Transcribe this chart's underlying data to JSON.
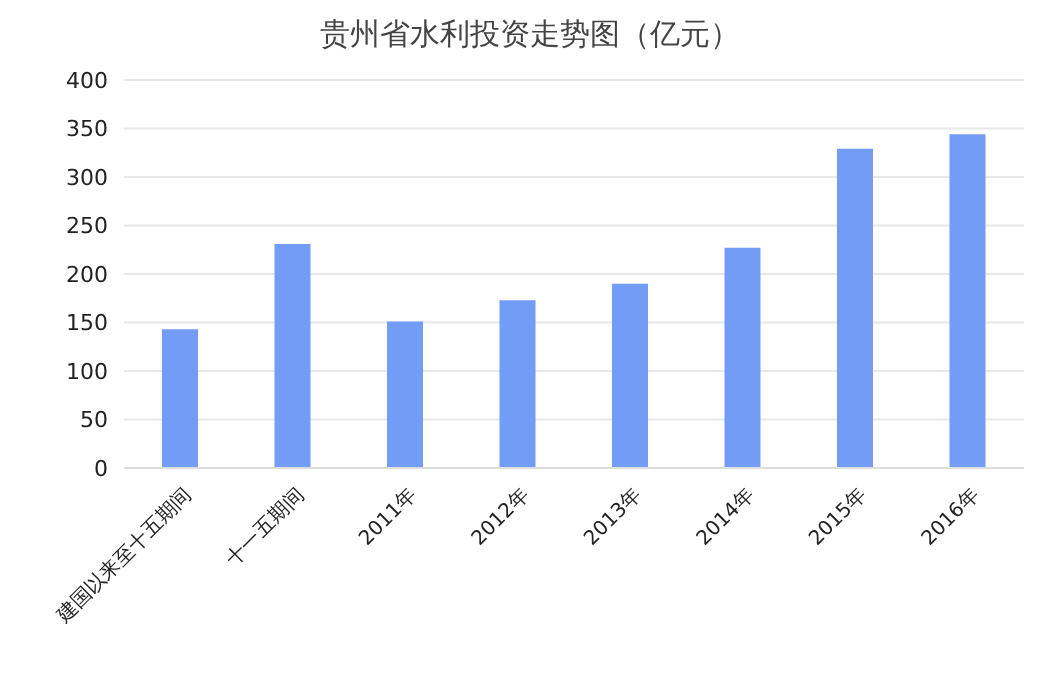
{
  "chart_data": {
    "type": "bar",
    "title": "贵州省水利投资走势图（亿元）",
    "categories": [
      "建国以来至十五期间",
      "十一五期间",
      "2011年",
      "2012年",
      "2013年",
      "2014年",
      "2015年",
      "2016年"
    ],
    "values": [
      143,
      231,
      151,
      173,
      190,
      227,
      329,
      344
    ],
    "color": "#729cf5",
    "ylim": [
      0,
      400
    ],
    "yticks": [
      0,
      50,
      100,
      150,
      200,
      250,
      300,
      350,
      400
    ],
    "grid": "y"
  }
}
